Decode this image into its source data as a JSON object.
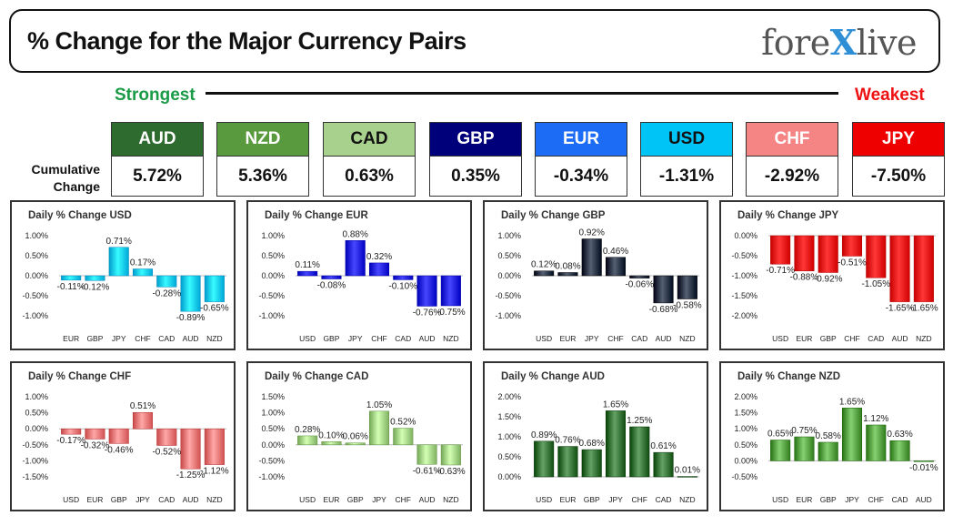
{
  "header": {
    "title": "% Change for the Major Currency Pairs",
    "logo_left": "fore",
    "logo_x": "X",
    "logo_right": "live"
  },
  "scale": {
    "strongest_label": "Strongest",
    "weakest_label": "Weakest"
  },
  "cumulative": {
    "label_line1": "Cumulative",
    "label_line2": "Change",
    "items": [
      {
        "ccy": "AUD",
        "value": "5.72%",
        "color": "#2e6b2e",
        "text_color": "#ffffff"
      },
      {
        "ccy": "NZD",
        "value": "5.36%",
        "color": "#5a9a3e",
        "text_color": "#ffffff"
      },
      {
        "ccy": "CAD",
        "value": "0.63%",
        "color": "#a9d18e",
        "text_color": "#111111"
      },
      {
        "ccy": "GBP",
        "value": "0.35%",
        "color": "#00007a",
        "text_color": "#ffffff"
      },
      {
        "ccy": "EUR",
        "value": "-0.34%",
        "color": "#1c6cf5",
        "text_color": "#ffffff"
      },
      {
        "ccy": "USD",
        "value": "-1.31%",
        "color": "#00c4f5",
        "text_color": "#111111"
      },
      {
        "ccy": "CHF",
        "value": "-2.92%",
        "color": "#f58484",
        "text_color": "#ffffff"
      },
      {
        "ccy": "JPY",
        "value": "-7.50%",
        "color": "#ee0000",
        "text_color": "#ffffff"
      }
    ]
  },
  "chart_data": [
    {
      "type": "bar",
      "title": "Daily % Change USD",
      "categories": [
        "EUR",
        "GBP",
        "JPY",
        "CHF",
        "CAD",
        "AUD",
        "NZD"
      ],
      "values": [
        -0.11,
        -0.12,
        0.71,
        0.17,
        -0.28,
        -0.89,
        -0.65
      ],
      "labels": [
        "-0.11%",
        "-0.12%",
        "0.71%",
        "0.17%",
        "-0.28%",
        "-0.89%",
        "-0.65%"
      ],
      "yticks": [
        1.0,
        0.5,
        0.0,
        -0.5,
        -1.0
      ],
      "ytick_labels": [
        "1.00%",
        "0.50%",
        "0.00%",
        "-0.50%",
        "-1.00%"
      ],
      "ylim": [
        -1.0,
        1.0
      ],
      "color": "#00c4f5"
    },
    {
      "type": "bar",
      "title": "Daily % Change EUR",
      "categories": [
        "USD",
        "GBP",
        "JPY",
        "CHF",
        "CAD",
        "AUD",
        "NZD"
      ],
      "values": [
        0.11,
        -0.08,
        0.88,
        0.32,
        -0.1,
        -0.76,
        -0.75
      ],
      "labels": [
        "0.11%",
        "-0.08%",
        "0.88%",
        "0.32%",
        "-0.10%",
        "-0.76%",
        "-0.75%"
      ],
      "yticks": [
        1.0,
        0.5,
        0.0,
        -0.5,
        -1.0
      ],
      "ytick_labels": [
        "1.00%",
        "0.50%",
        "0.00%",
        "-0.50%",
        "-1.00%"
      ],
      "ylim": [
        -1.0,
        1.0
      ],
      "color": "#1010e0"
    },
    {
      "type": "bar",
      "title": "Daily % Change GBP",
      "categories": [
        "USD",
        "EUR",
        "JPY",
        "CHF",
        "CAD",
        "AUD",
        "NZD"
      ],
      "values": [
        0.12,
        0.08,
        0.92,
        0.46,
        -0.06,
        -0.68,
        -0.58
      ],
      "labels": [
        "0.12%",
        "0.08%",
        "0.92%",
        "0.46%",
        "-0.06%",
        "-0.68%",
        "-0.58%"
      ],
      "yticks": [
        1.0,
        0.5,
        0.0,
        -0.5,
        -1.0
      ],
      "ytick_labels": [
        "1.00%",
        "0.50%",
        "0.00%",
        "-0.50%",
        "-1.00%"
      ],
      "ylim": [
        -1.0,
        1.0
      ],
      "color": "#1e2a3c"
    },
    {
      "type": "bar",
      "title": "Daily % Change JPY",
      "categories": [
        "USD",
        "EUR",
        "GBP",
        "CHF",
        "CAD",
        "AUD",
        "NZD"
      ],
      "values": [
        -0.71,
        -0.88,
        -0.92,
        -0.51,
        -1.05,
        -1.65,
        -1.65
      ],
      "labels": [
        "-0.71%",
        "-0.88%",
        "-0.92%",
        "-0.51%",
        "-1.05%",
        "-1.65%",
        "-1.65%"
      ],
      "yticks": [
        0.0,
        -0.5,
        -1.0,
        -1.5,
        -2.0
      ],
      "ytick_labels": [
        "0.00%",
        "-0.50%",
        "-1.00%",
        "-1.50%",
        "-2.00%"
      ],
      "ylim": [
        -2.0,
        0.0
      ],
      "color": "#ee0000"
    },
    {
      "type": "bar",
      "title": "Daily % Change CHF",
      "categories": [
        "USD",
        "EUR",
        "GBP",
        "JPY",
        "CAD",
        "AUD",
        "NZD"
      ],
      "values": [
        -0.17,
        -0.32,
        -0.46,
        0.51,
        -0.52,
        -1.25,
        -1.12
      ],
      "labels": [
        "-0.17%",
        "-0.32%",
        "-0.46%",
        "0.51%",
        "-0.52%",
        "-1.25%",
        "-1.12%"
      ],
      "yticks": [
        1.0,
        0.5,
        0.0,
        -0.5,
        -1.0,
        -1.5
      ],
      "ytick_labels": [
        "1.00%",
        "0.50%",
        "0.00%",
        "-0.50%",
        "-1.00%",
        "-1.50%"
      ],
      "ylim": [
        -1.5,
        1.0
      ],
      "color": "#f07070"
    },
    {
      "type": "bar",
      "title": "Daily % Change CAD",
      "categories": [
        "USD",
        "EUR",
        "GBP",
        "JPY",
        "CHF",
        "AUD",
        "NZD"
      ],
      "values": [
        0.28,
        0.1,
        0.06,
        1.05,
        0.52,
        -0.61,
        -0.63
      ],
      "labels": [
        "0.28%",
        "0.10%",
        "0.06%",
        "1.05%",
        "0.52%",
        "-0.61%",
        "-0.63%"
      ],
      "yticks": [
        1.5,
        1.0,
        0.5,
        0.0,
        -0.5,
        -1.0
      ],
      "ytick_labels": [
        "1.50%",
        "1.00%",
        "0.50%",
        "0.00%",
        "-0.50%",
        "-1.00%"
      ],
      "ylim": [
        -1.0,
        1.5
      ],
      "color": "#9ccf7e"
    },
    {
      "type": "bar",
      "title": "Daily % Change AUD",
      "categories": [
        "USD",
        "EUR",
        "GBP",
        "JPY",
        "CHF",
        "CAD",
        "NZD"
      ],
      "values": [
        0.89,
        0.76,
        0.68,
        1.65,
        1.25,
        0.61,
        0.01
      ],
      "labels": [
        "0.89%",
        "0.76%",
        "0.68%",
        "1.65%",
        "1.25%",
        "0.61%",
        "0.01%"
      ],
      "yticks": [
        2.0,
        1.5,
        1.0,
        0.5,
        0.0
      ],
      "ytick_labels": [
        "2.00%",
        "1.50%",
        "1.00%",
        "0.50%",
        "0.00%"
      ],
      "ylim": [
        0.0,
        2.0
      ],
      "color": "#2e6b2e"
    },
    {
      "type": "bar",
      "title": "Daily % Change NZD",
      "categories": [
        "USD",
        "EUR",
        "GBP",
        "JPY",
        "CHF",
        "CAD",
        "AUD"
      ],
      "values": [
        0.65,
        0.75,
        0.58,
        1.65,
        1.12,
        0.63,
        -0.01
      ],
      "labels": [
        "0.65%",
        "0.75%",
        "0.58%",
        "1.65%",
        "1.12%",
        "0.63%",
        "-0.01%"
      ],
      "yticks": [
        2.0,
        1.5,
        1.0,
        0.5,
        0.0,
        -0.5
      ],
      "ytick_labels": [
        "2.00%",
        "1.50%",
        "1.00%",
        "0.50%",
        "0.00%",
        "-0.50%"
      ],
      "ylim": [
        -0.5,
        2.0
      ],
      "color": "#4f9a3a"
    }
  ]
}
